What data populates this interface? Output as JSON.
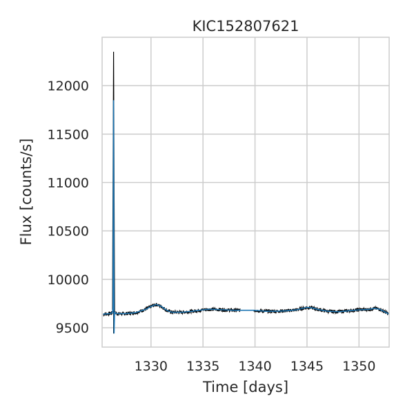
{
  "chart_data": {
    "type": "line",
    "title": "KIC152807621",
    "xlabel": "Time [days]",
    "ylabel": "Flux [counts/s]",
    "xlim": [
      1325.3,
      1352.9
    ],
    "ylim": [
      9300,
      12500
    ],
    "xticks": [
      1330,
      1335,
      1340,
      1345,
      1350
    ],
    "yticks": [
      9500,
      10000,
      10500,
      11000,
      11500,
      12000
    ],
    "grid": true,
    "gap": [
      1338.6,
      1339.9
    ],
    "series": [
      {
        "style": "raw",
        "color": "#000000",
        "x": [
          1325.4,
          1326.0,
          1326.2,
          1326.3,
          1326.4,
          1326.5,
          1326.6,
          1326.8,
          1327.5,
          1328.5,
          1329.5,
          1330.0,
          1330.5,
          1331.0,
          1331.5,
          1332.0,
          1333.0,
          1334.0,
          1335.0,
          1335.5,
          1336.0,
          1337.0,
          1338.0,
          1338.6,
          1339.9,
          1341.0,
          1342.0,
          1343.0,
          1344.0,
          1345.0,
          1345.5,
          1346.0,
          1347.0,
          1348.0,
          1349.0,
          1350.0,
          1351.0,
          1351.5,
          1352.0,
          1352.9
        ],
        "y": [
          9640,
          9645,
          9650,
          9660,
          12350,
          9660,
          9650,
          9645,
          9645,
          9655,
          9690,
          9720,
          9740,
          9720,
          9680,
          9660,
          9660,
          9670,
          9685,
          9690,
          9690,
          9685,
          9680,
          9680,
          9680,
          9670,
          9670,
          9675,
          9685,
          9710,
          9705,
          9690,
          9670,
          9665,
          9675,
          9685,
          9690,
          9700,
          9690,
          9640
        ],
        "scatter": 18
      },
      {
        "style": "detrended",
        "color": "#1f77b4",
        "x": [
          1325.4,
          1326.0,
          1326.2,
          1326.3,
          1326.35,
          1326.4,
          1326.45,
          1326.5,
          1326.6,
          1326.8,
          1327.5,
          1328.5,
          1329.5,
          1330.0,
          1330.5,
          1331.0,
          1331.5,
          1332.0,
          1333.0,
          1334.0,
          1335.0,
          1335.5,
          1336.0,
          1337.0,
          1338.0,
          1338.6,
          1339.9,
          1341.0,
          1342.0,
          1343.0,
          1344.0,
          1345.0,
          1345.5,
          1346.0,
          1347.0,
          1348.0,
          1349.0,
          1350.0,
          1351.0,
          1351.5,
          1352.0,
          1352.9
        ],
        "y": [
          9640,
          9645,
          9650,
          9660,
          9700,
          11850,
          9440,
          9660,
          9650,
          9645,
          9645,
          9655,
          9690,
          9720,
          9740,
          9720,
          9680,
          9660,
          9660,
          9670,
          9685,
          9690,
          9690,
          9685,
          9680,
          9680,
          9680,
          9670,
          9670,
          9675,
          9685,
          9710,
          9705,
          9690,
          9670,
          9665,
          9675,
          9685,
          9690,
          9700,
          9690,
          9640
        ]
      }
    ]
  }
}
